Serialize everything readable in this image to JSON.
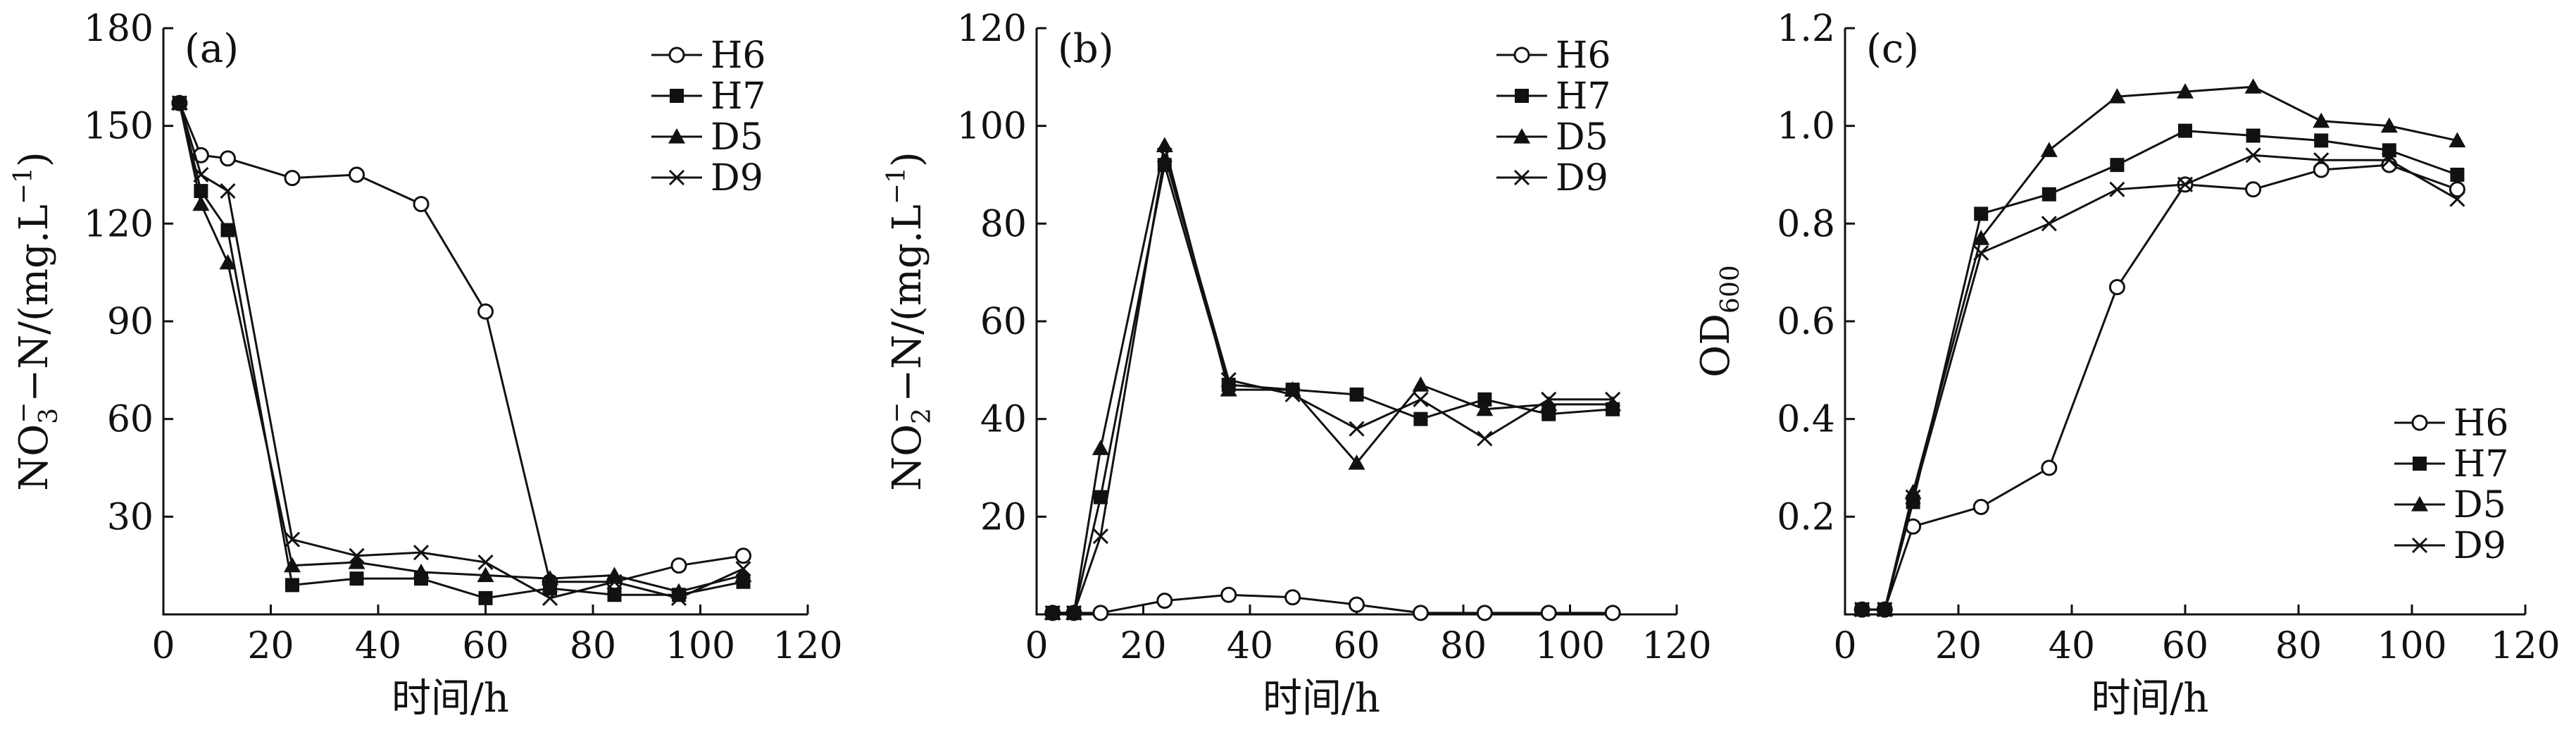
{
  "chart_data": [
    {
      "type": "line",
      "panel_label": "(a)",
      "xlabel": "时间/h",
      "ylabel": "NO3−−N/(mg.L−1)",
      "ylabel_parts": {
        "main": "NO",
        "sub": "3",
        "sup": "−",
        "rest": "−N/(mg.L",
        "sup2": "−1",
        "end": ")"
      },
      "xlim": [
        0,
        120
      ],
      "ylim": [
        0,
        180
      ],
      "xticks": [
        0,
        20,
        40,
        60,
        80,
        100,
        120
      ],
      "yticks": [
        30,
        60,
        90,
        120,
        150,
        180
      ],
      "legend_position": "top-right",
      "series": [
        {
          "name": "H6",
          "marker": "circle",
          "x": [
            3,
            7,
            12,
            24,
            36,
            48,
            60,
            72,
            84,
            96,
            108
          ],
          "y": [
            157,
            141,
            140,
            134,
            135,
            126,
            93,
            10,
            10,
            15,
            18
          ]
        },
        {
          "name": "H7",
          "marker": "square",
          "x": [
            3,
            7,
            12,
            24,
            36,
            48,
            60,
            72,
            84,
            96,
            108
          ],
          "y": [
            157,
            130,
            118,
            9,
            11,
            11,
            5,
            8,
            6,
            6,
            10
          ]
        },
        {
          "name": "D5",
          "marker": "triangle",
          "x": [
            3,
            7,
            12,
            24,
            36,
            48,
            60,
            72,
            84,
            96,
            108
          ],
          "y": [
            157,
            126,
            108,
            15,
            16,
            13,
            12,
            11,
            12,
            7,
            12
          ]
        },
        {
          "name": "D9",
          "marker": "cross",
          "x": [
            3,
            7,
            12,
            24,
            36,
            48,
            60,
            72,
            84,
            96,
            108
          ],
          "y": [
            157,
            135,
            130,
            23,
            18,
            19,
            16,
            5,
            10,
            5,
            14
          ]
        }
      ]
    },
    {
      "type": "line",
      "panel_label": "(b)",
      "xlabel": "时间/h",
      "ylabel": "NO2−−N/(mg.L−1)",
      "ylabel_parts": {
        "main": "NO",
        "sub": "2",
        "sup": "−",
        "rest": "−N/(mg.L",
        "sup2": "−1",
        "end": ")"
      },
      "xlim": [
        0,
        120
      ],
      "ylim": [
        0,
        120
      ],
      "xticks": [
        0,
        20,
        40,
        60,
        80,
        100,
        120
      ],
      "yticks": [
        20,
        40,
        60,
        80,
        100,
        120
      ],
      "legend_position": "top-right",
      "series": [
        {
          "name": "H6",
          "marker": "circle",
          "x": [
            3,
            7,
            12,
            24,
            36,
            48,
            60,
            72,
            84,
            96,
            108
          ],
          "y": [
            0.3,
            0.3,
            0.3,
            2.8,
            4,
            3.5,
            2,
            0.3,
            0.3,
            0.3,
            0.3
          ]
        },
        {
          "name": "H7",
          "marker": "square",
          "x": [
            3,
            7,
            12,
            24,
            36,
            48,
            60,
            72,
            84,
            96,
            108
          ],
          "y": [
            0.3,
            0.3,
            24,
            92,
            47,
            46,
            45,
            40,
            44,
            41,
            42
          ]
        },
        {
          "name": "D5",
          "marker": "triangle",
          "x": [
            3,
            7,
            12,
            24,
            36,
            48,
            60,
            72,
            84,
            96,
            108
          ],
          "y": [
            0.3,
            0.3,
            34,
            96,
            46,
            46,
            31,
            47,
            42,
            43,
            43
          ]
        },
        {
          "name": "D9",
          "marker": "cross",
          "x": [
            3,
            7,
            12,
            24,
            36,
            48,
            60,
            72,
            84,
            96,
            108
          ],
          "y": [
            0.3,
            0.3,
            16,
            94,
            48,
            45,
            38,
            44,
            36,
            44,
            44
          ]
        }
      ]
    },
    {
      "type": "line",
      "panel_label": "(c)",
      "xlabel": "时间/h",
      "ylabel": "OD600",
      "ylabel_parts": {
        "main": "OD",
        "sub": "600"
      },
      "xlim": [
        0,
        120
      ],
      "ylim": [
        0,
        1.2
      ],
      "xticks": [
        0,
        20,
        40,
        60,
        80,
        100,
        120
      ],
      "yticks": [
        0.2,
        0.4,
        0.6,
        0.8,
        1.0,
        1.2
      ],
      "legend_position": "bottom-right",
      "series": [
        {
          "name": "H6",
          "marker": "circle",
          "x": [
            3,
            7,
            12,
            24,
            36,
            48,
            60,
            72,
            84,
            96,
            108
          ],
          "y": [
            0.01,
            0.01,
            0.18,
            0.22,
            0.3,
            0.67,
            0.88,
            0.87,
            0.91,
            0.92,
            0.87
          ]
        },
        {
          "name": "H7",
          "marker": "square",
          "x": [
            3,
            7,
            12,
            24,
            36,
            48,
            60,
            72,
            84,
            96,
            108
          ],
          "y": [
            0.01,
            0.01,
            0.23,
            0.82,
            0.86,
            0.92,
            0.99,
            0.98,
            0.97,
            0.95,
            0.9
          ]
        },
        {
          "name": "D5",
          "marker": "triangle",
          "x": [
            3,
            7,
            12,
            24,
            36,
            48,
            60,
            72,
            84,
            96,
            108
          ],
          "y": [
            0.01,
            0.01,
            0.25,
            0.77,
            0.95,
            1.06,
            1.07,
            1.08,
            1.01,
            1.0,
            0.97
          ]
        },
        {
          "name": "D9",
          "marker": "cross",
          "x": [
            3,
            7,
            12,
            24,
            36,
            48,
            60,
            72,
            84,
            96,
            108
          ],
          "y": [
            0.01,
            0.01,
            0.24,
            0.74,
            0.8,
            0.87,
            0.88,
            0.94,
            0.93,
            0.93,
            0.85
          ]
        }
      ]
    }
  ]
}
